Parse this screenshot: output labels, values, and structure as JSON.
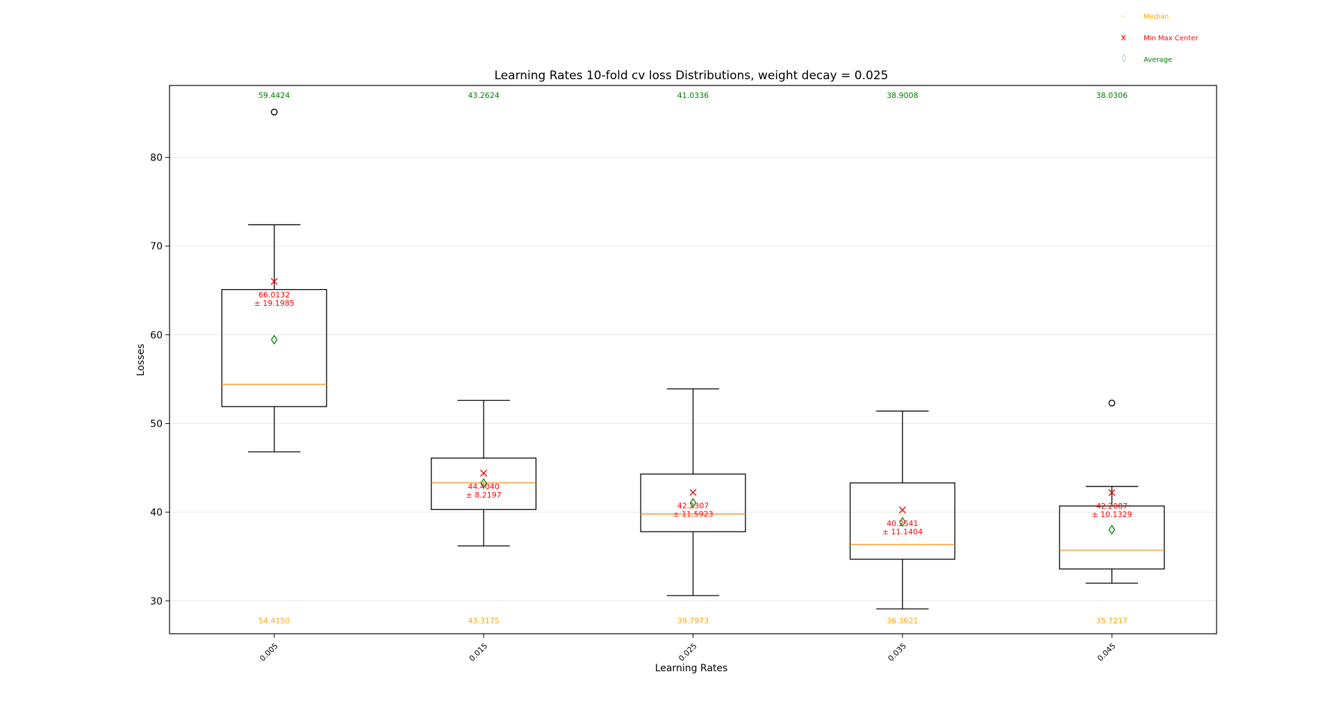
{
  "chart_data": {
    "type": "box",
    "title": "Learning Rates 10-fold cv loss Distributions, weight decay = 0.025",
    "xlabel": "Learning Rates",
    "ylabel": "Losses",
    "ylim": [
      26.3,
      88.1
    ],
    "yticks": [
      30,
      40,
      50,
      60,
      70,
      80
    ],
    "categories": [
      "0.005",
      "0.015",
      "0.025",
      "0.035",
      "0.045"
    ],
    "grid": "horizontal",
    "legend_position": "top-right",
    "legend": [
      {
        "label": "Median",
        "marker": "-",
        "color": "#ffa500"
      },
      {
        "label": "Min Max Center",
        "marker": "x",
        "color": "#ff0000"
      },
      {
        "label": "Average",
        "marker": "◊",
        "color": "#008000"
      }
    ],
    "boxes": [
      {
        "q1": 51.9,
        "median": 54.415,
        "q3": 65.1,
        "whisker_low": 46.8,
        "whisker_high": 72.4,
        "outliers": [
          85.1
        ],
        "mean": 59.4424,
        "center": 66.0132,
        "center_label": "66.0132",
        "spread_label": "± 19.1985"
      },
      {
        "q1": 40.3,
        "median": 43.3175,
        "q3": 46.1,
        "whisker_low": 36.2,
        "whisker_high": 52.6,
        "outliers": [],
        "mean": 43.2624,
        "center": 44.404,
        "center_label": "44.4040",
        "spread_label": "± 8.2197"
      },
      {
        "q1": 37.8,
        "median": 39.7973,
        "q3": 44.3,
        "whisker_low": 30.6,
        "whisker_high": 53.9,
        "outliers": [],
        "mean": 41.0336,
        "center": 42.2307,
        "center_label": "42.2307",
        "spread_label": "± 11.5923"
      },
      {
        "q1": 34.7,
        "median": 36.3621,
        "q3": 43.3,
        "whisker_low": 29.1,
        "whisker_high": 51.4,
        "outliers": [],
        "mean": 38.9008,
        "center": 40.2541,
        "center_label": "40.2541",
        "spread_label": "± 11.1404"
      },
      {
        "q1": 33.6,
        "median": 35.7217,
        "q3": 40.7,
        "whisker_low": 32.0,
        "whisker_high": 42.9,
        "outliers": [
          52.3
        ],
        "mean": 38.0306,
        "center": 42.2087,
        "center_label": "42.2087",
        "spread_label": "± 10.1329"
      }
    ],
    "mean_labels": [
      "59.4424",
      "43.2624",
      "41.0336",
      "38.9008",
      "38.0306"
    ],
    "median_labels": [
      "54.4150",
      "43.3175",
      "39.7973",
      "36.3621",
      "35.7217"
    ],
    "colors": {
      "box": "#000000",
      "median": "#ff8c1a",
      "median_text": "#ffa500",
      "center": "#ff0000",
      "average": "#008000",
      "grid": "#e6e6e6"
    }
  }
}
